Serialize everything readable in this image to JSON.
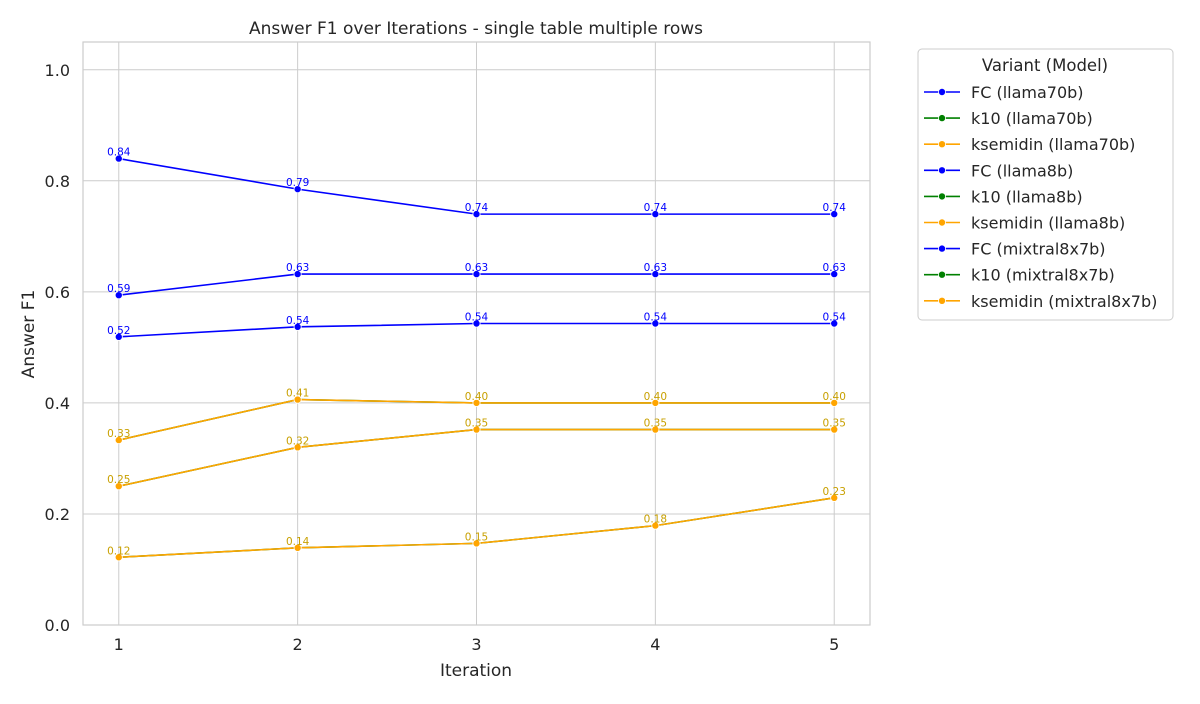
{
  "chart_data": {
    "type": "line",
    "title": "Answer F1 over Iterations - single table multiple rows",
    "xlabel": "Iteration",
    "ylabel": "Answer F1",
    "x": [
      1,
      2,
      3,
      4,
      5
    ],
    "xlim": [
      0.8,
      5.2
    ],
    "ylim": [
      0.0,
      1.05
    ],
    "yticks": [
      0.0,
      0.2,
      0.4,
      0.6,
      0.8,
      1.0
    ],
    "ytick_labels": [
      "0.0",
      "0.2",
      "0.4",
      "0.6",
      "0.8",
      "1.0"
    ],
    "xtick_labels": [
      "1",
      "2",
      "3",
      "4",
      "5"
    ],
    "grid": true,
    "legend_title": "Variant (Model)",
    "legend_placement": "outside-right",
    "series": [
      {
        "name": "FC (llama70b)",
        "color": "#0000ff",
        "values": [
          0.84,
          0.785,
          0.74,
          0.74,
          0.74
        ],
        "labels": [
          "0.84",
          "0.79",
          "0.74",
          "0.74",
          "0.74"
        ]
      },
      {
        "name": "k10 (llama70b)",
        "color": "#008000",
        "values": [
          0.333,
          0.406,
          0.4,
          0.4,
          0.4
        ],
        "labels": [
          "0.33",
          "0.41",
          "0.40",
          "0.40",
          "0.40"
        ]
      },
      {
        "name": "ksemidin (llama70b)",
        "color": "#ffa500",
        "values": [
          0.333,
          0.406,
          0.4,
          0.4,
          0.4
        ],
        "labels": [
          "0.33",
          "0.41",
          "0.40",
          "0.40",
          "0.40"
        ]
      },
      {
        "name": "FC (llama8b)",
        "color": "#0000ff",
        "values": [
          0.594,
          0.632,
          0.632,
          0.632,
          0.632
        ],
        "labels": [
          "0.59",
          "0.63",
          "0.63",
          "0.63",
          "0.63"
        ]
      },
      {
        "name": "k10 (llama8b)",
        "color": "#008000",
        "values": [
          0.122,
          0.139,
          0.147,
          0.179,
          0.229
        ],
        "labels": [
          "0.12",
          "0.14",
          "0.15",
          "0.18",
          "0.23"
        ]
      },
      {
        "name": "ksemidin (llama8b)",
        "color": "#ffa500",
        "values": [
          0.122,
          0.139,
          0.147,
          0.179,
          0.229
        ],
        "labels": [
          "0.12",
          "0.14",
          "0.15",
          "0.18",
          "0.23"
        ]
      },
      {
        "name": "FC (mixtral8x7b)",
        "color": "#0000ff",
        "values": [
          0.519,
          0.537,
          0.543,
          0.543,
          0.543
        ],
        "labels": [
          "0.52",
          "0.54",
          "0.54",
          "0.54",
          "0.54"
        ]
      },
      {
        "name": "k10 (mixtral8x7b)",
        "color": "#008000",
        "values": [
          0.25,
          0.32,
          0.352,
          0.352,
          0.352
        ],
        "labels": [
          "0.25",
          "0.32",
          "0.35",
          "0.35",
          "0.35"
        ]
      },
      {
        "name": "ksemidin (mixtral8x7b)",
        "color": "#ffa500",
        "values": [
          0.25,
          0.32,
          0.352,
          0.352,
          0.352
        ],
        "labels": [
          "0.25",
          "0.32",
          "0.35",
          "0.35",
          "0.35"
        ]
      }
    ]
  }
}
